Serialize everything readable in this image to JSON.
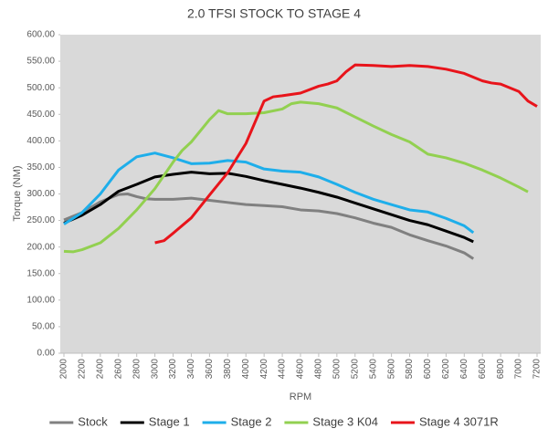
{
  "chart_data": {
    "type": "line",
    "title": "2.0 TFSI STOCK TO STAGE 4",
    "x_label": "RPM",
    "y_label": "Torque (NM)",
    "xlim": [
      2000,
      7200
    ],
    "xticks": [
      2000,
      2200,
      2400,
      2600,
      2800,
      3000,
      3200,
      3400,
      3600,
      3800,
      4000,
      4200,
      4400,
      4600,
      4800,
      5000,
      5200,
      5400,
      5600,
      5800,
      6000,
      6200,
      6400,
      6600,
      6800,
      7000,
      7200
    ],
    "ylim": [
      0,
      600
    ],
    "yticks": [
      {
        "value": 0,
        "label": "0.00"
      },
      {
        "value": 50,
        "label": "50.00"
      },
      {
        "value": 100,
        "label": "100.00"
      },
      {
        "value": 150,
        "label": "150.00"
      },
      {
        "value": 200,
        "label": "200.00"
      },
      {
        "value": 250,
        "label": "250.00"
      },
      {
        "value": 300,
        "label": "300.00"
      },
      {
        "value": 350,
        "label": "350.00"
      },
      {
        "value": 400,
        "label": "400.00"
      },
      {
        "value": 450,
        "label": "450.00"
      },
      {
        "value": 500,
        "label": "500.00"
      },
      {
        "value": 550,
        "label": "550.00"
      },
      {
        "value": 600,
        "label": "600.00"
      }
    ],
    "series": [
      {
        "name": "Stock",
        "color": "#808080",
        "x": [
          2000,
          2200,
          2400,
          2600,
          2700,
          2800,
          2900,
          3000,
          3200,
          3400,
          3600,
          3800,
          4000,
          4200,
          4400,
          4600,
          4800,
          5000,
          5200,
          5400,
          5600,
          5800,
          6000,
          6200,
          6400,
          6500
        ],
        "values": [
          251,
          265,
          285,
          299,
          300,
          295,
          291,
          290,
          290,
          292,
          288,
          284,
          280,
          278,
          276,
          270,
          268,
          263,
          255,
          245,
          237,
          223,
          212,
          202,
          189,
          178
        ]
      },
      {
        "name": "Stage 1",
        "color": "#000000",
        "x": [
          2000,
          2200,
          2400,
          2600,
          2800,
          3000,
          3200,
          3400,
          3600,
          3800,
          4000,
          4200,
          4400,
          4600,
          4800,
          5000,
          5200,
          5400,
          5600,
          5800,
          6000,
          6200,
          6400,
          6500
        ],
        "values": [
          245,
          260,
          280,
          305,
          318,
          332,
          337,
          341,
          338,
          339,
          333,
          325,
          318,
          311,
          303,
          294,
          283,
          272,
          261,
          250,
          242,
          230,
          218,
          210
        ]
      },
      {
        "name": "Stage 2",
        "color": "#1eaeea",
        "x": [
          2000,
          2200,
          2400,
          2600,
          2800,
          3000,
          3200,
          3400,
          3600,
          3800,
          4000,
          4200,
          4400,
          4600,
          4800,
          5000,
          5200,
          5400,
          5600,
          5800,
          6000,
          6200,
          6400,
          6500
        ],
        "values": [
          243,
          265,
          300,
          345,
          370,
          377,
          368,
          357,
          358,
          363,
          360,
          347,
          343,
          341,
          332,
          318,
          303,
          290,
          280,
          270,
          266,
          254,
          240,
          227
        ]
      },
      {
        "name": "Stage 3 K04",
        "color": "#92d050",
        "x": [
          2000,
          2100,
          2200,
          2400,
          2600,
          2800,
          3000,
          3200,
          3300,
          3400,
          3600,
          3700,
          3800,
          4000,
          4200,
          4400,
          4500,
          4600,
          4800,
          5000,
          5200,
          5400,
          5600,
          5800,
          6000,
          6200,
          6400,
          6600,
          6800,
          7000,
          7100
        ],
        "values": [
          192,
          191,
          195,
          208,
          235,
          270,
          310,
          360,
          382,
          398,
          440,
          457,
          451,
          451,
          453,
          460,
          470,
          473,
          470,
          462,
          445,
          428,
          412,
          398,
          375,
          368,
          358,
          345,
          330,
          313,
          304
        ]
      },
      {
        "name": "Stage 4 3071R",
        "color": "#e8141b",
        "x": [
          3000,
          3100,
          3200,
          3400,
          3600,
          3800,
          4000,
          4200,
          4300,
          4400,
          4600,
          4800,
          4900,
          5000,
          5100,
          5200,
          5400,
          5600,
          5800,
          6000,
          6200,
          6400,
          6600,
          6700,
          6800,
          7000,
          7100,
          7200
        ],
        "values": [
          208,
          212,
          226,
          255,
          298,
          340,
          395,
          475,
          483,
          485,
          490,
          503,
          507,
          513,
          530,
          543,
          542,
          540,
          542,
          540,
          535,
          527,
          513,
          509,
          507,
          493,
          475,
          465
        ]
      }
    ]
  }
}
